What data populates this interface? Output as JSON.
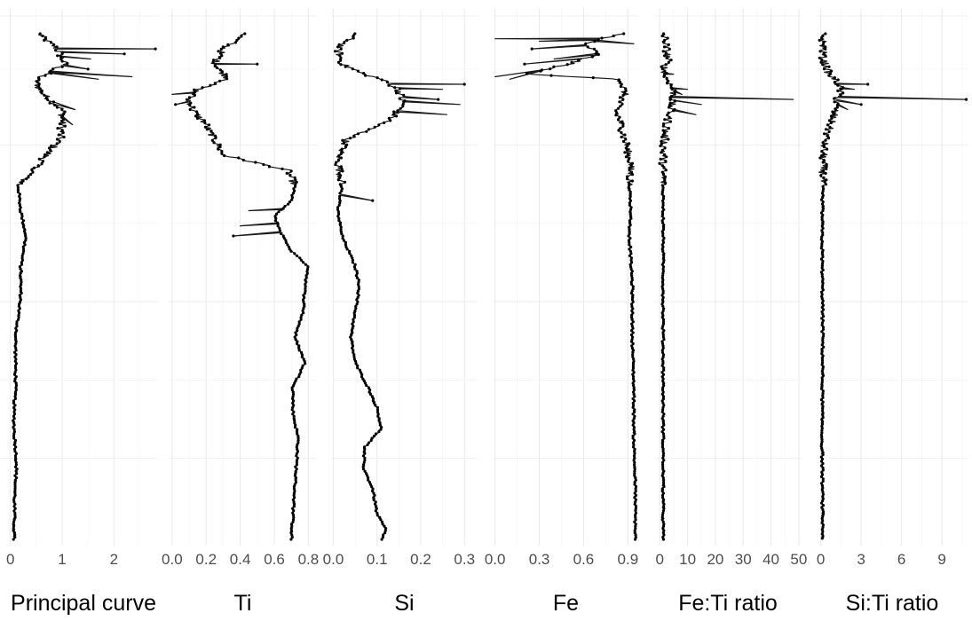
{
  "chart_data": [
    {
      "type": "line",
      "xlabel": "Principal curve",
      "xticks": [
        0,
        1,
        2
      ],
      "xtick_labels": [
        "0",
        "1",
        "2"
      ],
      "xlim": [
        -0.2,
        2.85
      ],
      "profile": [
        [
          0,
          0.55
        ],
        [
          0.03,
          0.9
        ],
        [
          0.06,
          1.05
        ],
        [
          0.09,
          0.5
        ],
        [
          0.11,
          0.55
        ],
        [
          0.13,
          0.75
        ],
        [
          0.15,
          1.0
        ],
        [
          0.18,
          1.0
        ],
        [
          0.21,
          0.95
        ],
        [
          0.24,
          0.7
        ],
        [
          0.27,
          0.45
        ],
        [
          0.3,
          0.15
        ],
        [
          0.35,
          0.2
        ],
        [
          0.4,
          0.3
        ],
        [
          0.46,
          0.2
        ],
        [
          0.52,
          0.2
        ],
        [
          0.6,
          0.1
        ],
        [
          0.7,
          0.1
        ],
        [
          0.74,
          0.07
        ],
        [
          0.78,
          0.07
        ],
        [
          0.85,
          0.12
        ],
        [
          0.92,
          0.08
        ],
        [
          1,
          0.07
        ]
      ],
      "spikes": [
        [
          0.03,
          2.8
        ],
        [
          0.04,
          2.2
        ],
        [
          0.05,
          1.55
        ],
        [
          0.07,
          1.5
        ],
        [
          0.085,
          2.35
        ],
        [
          0.09,
          1.7
        ],
        [
          0.15,
          1.25
        ],
        [
          0.18,
          1.2
        ]
      ]
    },
    {
      "type": "line",
      "xlabel": "Ti",
      "xticks": [
        0,
        0.2,
        0.4,
        0.6,
        0.8
      ],
      "xtick_labels": [
        "0.0",
        "0.2",
        "0.4",
        "0.6",
        "0.8"
      ],
      "xlim": [
        -0.02,
        0.85
      ],
      "profile": [
        [
          0,
          0.43
        ],
        [
          0.03,
          0.3
        ],
        [
          0.06,
          0.25
        ],
        [
          0.09,
          0.33
        ],
        [
          0.11,
          0.15
        ],
        [
          0.13,
          0.1
        ],
        [
          0.15,
          0.12
        ],
        [
          0.18,
          0.2
        ],
        [
          0.21,
          0.25
        ],
        [
          0.24,
          0.3
        ],
        [
          0.27,
          0.68
        ],
        [
          0.3,
          0.72
        ],
        [
          0.33,
          0.7
        ],
        [
          0.36,
          0.6
        ],
        [
          0.4,
          0.65
        ],
        [
          0.43,
          0.7
        ],
        [
          0.46,
          0.8
        ],
        [
          0.5,
          0.78
        ],
        [
          0.55,
          0.77
        ],
        [
          0.6,
          0.72
        ],
        [
          0.65,
          0.78
        ],
        [
          0.7,
          0.71
        ],
        [
          0.75,
          0.71
        ],
        [
          0.8,
          0.74
        ],
        [
          0.85,
          0.73
        ],
        [
          0.9,
          0.72
        ],
        [
          0.95,
          0.71
        ],
        [
          1,
          0.7
        ]
      ],
      "spikes": [
        [
          0.06,
          0.5
        ],
        [
          0.35,
          0.45
        ],
        [
          0.38,
          0.4
        ],
        [
          0.4,
          0.36
        ],
        [
          0.12,
          0.0
        ],
        [
          0.14,
          0.02
        ]
      ]
    },
    {
      "type": "line",
      "xlabel": "Si",
      "xticks": [
        0,
        0.1,
        0.2,
        0.3
      ],
      "xtick_labels": [
        "0.0",
        "0.1",
        "0.2",
        "0.3"
      ],
      "xlim": [
        -0.005,
        0.33
      ],
      "profile": [
        [
          0,
          0.05
        ],
        [
          0.03,
          0.01
        ],
        [
          0.06,
          0.02
        ],
        [
          0.08,
          0.07
        ],
        [
          0.09,
          0.11
        ],
        [
          0.11,
          0.15
        ],
        [
          0.14,
          0.16
        ],
        [
          0.17,
          0.13
        ],
        [
          0.19,
          0.08
        ],
        [
          0.21,
          0.03
        ],
        [
          0.25,
          0.01
        ],
        [
          0.3,
          0.02
        ],
        [
          0.35,
          0.01
        ],
        [
          0.4,
          0.02
        ],
        [
          0.46,
          0.05
        ],
        [
          0.5,
          0.06
        ],
        [
          0.55,
          0.05
        ],
        [
          0.6,
          0.04
        ],
        [
          0.65,
          0.05
        ],
        [
          0.7,
          0.08
        ],
        [
          0.74,
          0.1
        ],
        [
          0.78,
          0.11
        ],
        [
          0.82,
          0.07
        ],
        [
          0.86,
          0.07
        ],
        [
          0.9,
          0.09
        ],
        [
          0.95,
          0.1
        ],
        [
          0.98,
          0.12
        ],
        [
          1,
          0.11
        ]
      ],
      "spikes": [
        [
          0.1,
          0.3
        ],
        [
          0.11,
          0.25
        ],
        [
          0.14,
          0.29
        ],
        [
          0.16,
          0.26
        ],
        [
          0.13,
          0.24
        ],
        [
          0.33,
          0.09
        ]
      ]
    },
    {
      "type": "line",
      "xlabel": "Fe",
      "xticks": [
        0,
        0.3,
        0.6,
        0.9
      ],
      "xtick_labels": [
        "0.0",
        "0.3",
        "0.6",
        "0.9"
      ],
      "xlim": [
        -0.01,
        0.97
      ],
      "profile": [
        [
          0,
          0.86
        ],
        [
          0.02,
          0.6
        ],
        [
          0.04,
          0.7
        ],
        [
          0.06,
          0.5
        ],
        [
          0.08,
          0.2
        ],
        [
          0.09,
          0.85
        ],
        [
          0.12,
          0.88
        ],
        [
          0.15,
          0.82
        ],
        [
          0.19,
          0.86
        ],
        [
          0.23,
          0.9
        ],
        [
          0.26,
          0.92
        ],
        [
          0.3,
          0.91
        ],
        [
          0.35,
          0.92
        ],
        [
          0.4,
          0.91
        ],
        [
          0.5,
          0.93
        ],
        [
          0.6,
          0.93
        ],
        [
          0.7,
          0.94
        ],
        [
          0.8,
          0.94
        ],
        [
          0.9,
          0.95
        ],
        [
          1,
          0.95
        ]
      ],
      "spikes": [
        [
          0.01,
          0.0
        ],
        [
          0.015,
          0.3
        ],
        [
          0.02,
          0.94
        ],
        [
          0.03,
          0.25
        ],
        [
          0.05,
          0.4
        ],
        [
          0.06,
          0.2
        ],
        [
          0.085,
          0.0
        ],
        [
          0.09,
          0.1
        ]
      ]
    },
    {
      "type": "line",
      "xlabel": "Fe:Ti ratio",
      "xticks": [
        0,
        10,
        20,
        30,
        40,
        50
      ],
      "xtick_labels": [
        "0",
        "10",
        "20",
        "30",
        "40",
        "50"
      ],
      "xlim": [
        -2,
        51
      ],
      "profile": [
        [
          0,
          1.5
        ],
        [
          0.05,
          3
        ],
        [
          0.07,
          1.5
        ],
        [
          0.09,
          2.5
        ],
        [
          0.1,
          4
        ],
        [
          0.12,
          5
        ],
        [
          0.15,
          4
        ],
        [
          0.18,
          2.5
        ],
        [
          0.22,
          1.5
        ],
        [
          0.26,
          1.2
        ],
        [
          0.3,
          1.2
        ],
        [
          0.5,
          1.2
        ],
        [
          0.7,
          1.2
        ],
        [
          1,
          1.2
        ]
      ],
      "spikes": [
        [
          0.08,
          5
        ],
        [
          0.11,
          10
        ],
        [
          0.13,
          48
        ],
        [
          0.14,
          15
        ],
        [
          0.16,
          13
        ],
        [
          0.12,
          8
        ]
      ]
    },
    {
      "type": "line",
      "xlabel": "Si:Ti ratio",
      "xticks": [
        0,
        3,
        6,
        9
      ],
      "xtick_labels": [
        "0",
        "3",
        "6",
        "9"
      ],
      "xlim": [
        -0.3,
        10.9
      ],
      "profile": [
        [
          0,
          0.15
        ],
        [
          0.05,
          0.2
        ],
        [
          0.08,
          0.6
        ],
        [
          0.09,
          1
        ],
        [
          0.11,
          1.5
        ],
        [
          0.13,
          1.2
        ],
        [
          0.16,
          1
        ],
        [
          0.19,
          0.6
        ],
        [
          0.22,
          0.25
        ],
        [
          0.27,
          0.15
        ],
        [
          0.4,
          0.1
        ],
        [
          0.6,
          0.15
        ],
        [
          0.8,
          0.1
        ],
        [
          1,
          0.15
        ]
      ],
      "spikes": [
        [
          0.1,
          3.5
        ],
        [
          0.11,
          2.5
        ],
        [
          0.13,
          10.8
        ],
        [
          0.14,
          3
        ],
        [
          0.15,
          2
        ]
      ]
    }
  ]
}
